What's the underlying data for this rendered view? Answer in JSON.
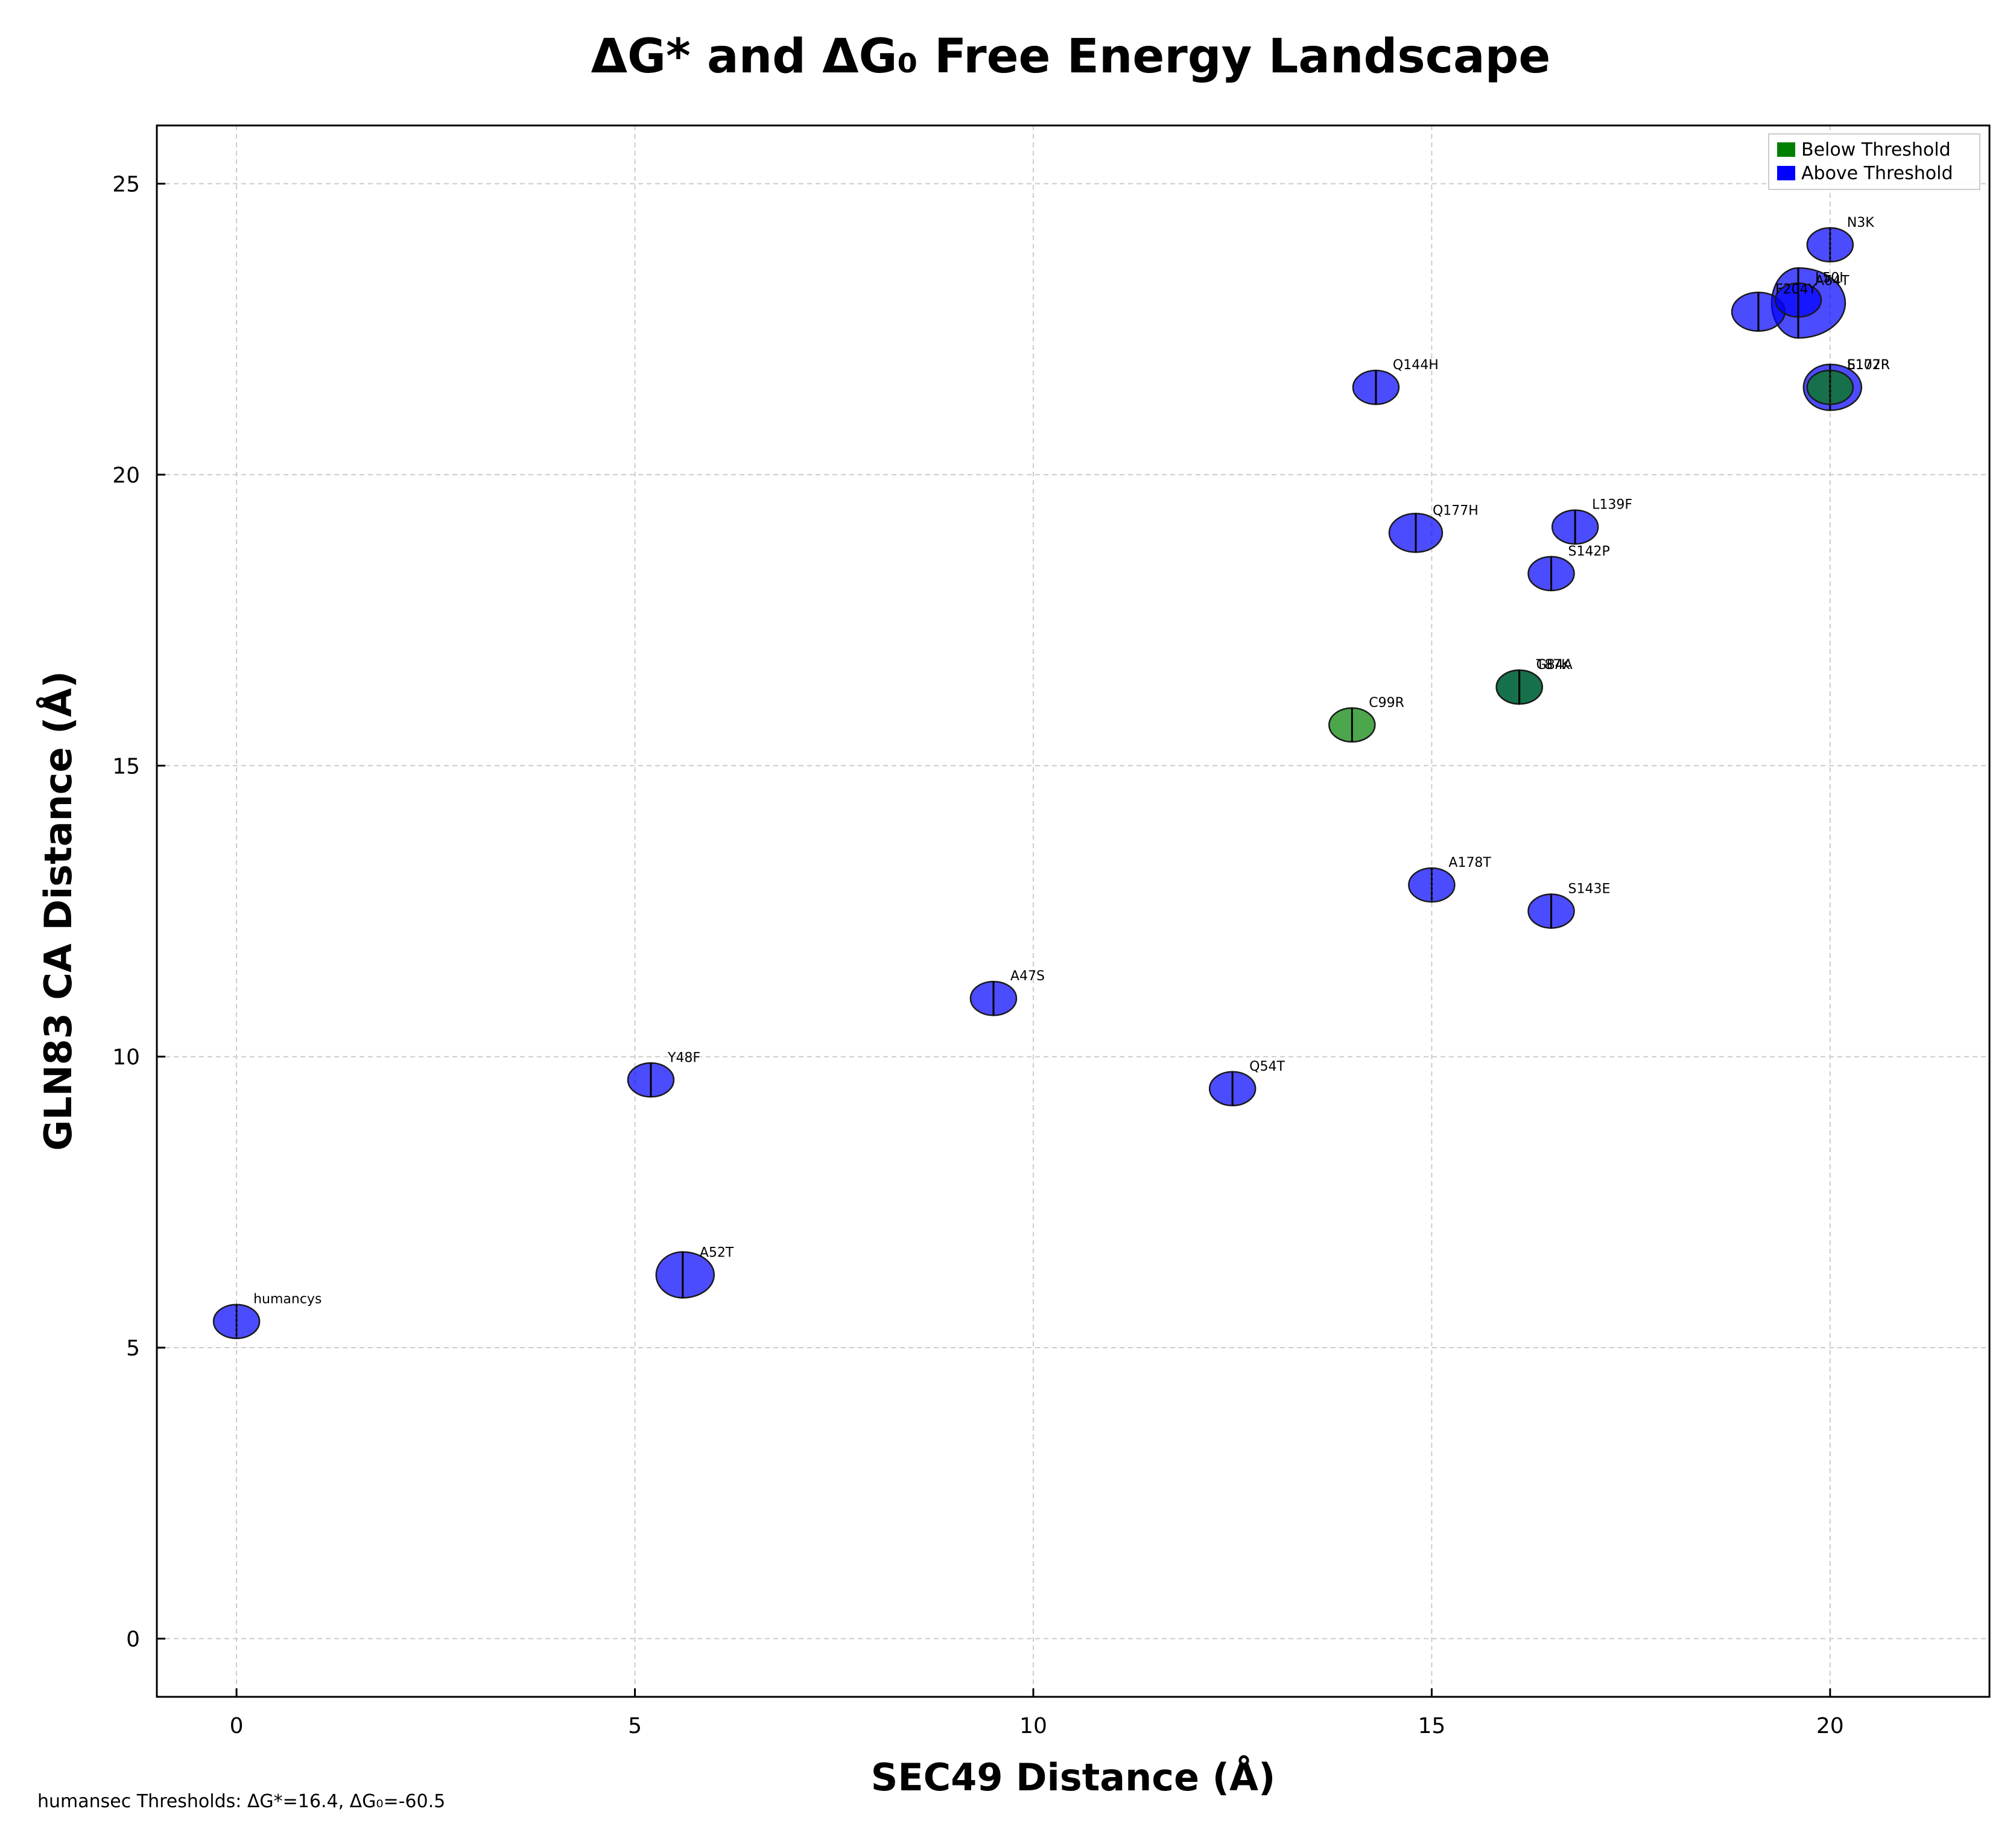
{
  "chart_data": {
    "type": "scatter",
    "title": "ΔG* and ΔG₀ Free Energy Landscape",
    "xlabel": "SEC49 Distance (Å)",
    "ylabel": "GLN83 CA Distance (Å)",
    "xlim": [
      -1,
      22
    ],
    "ylim": [
      -1,
      26
    ],
    "xticks": [
      0,
      5,
      10,
      15,
      20
    ],
    "yticks": [
      0,
      5,
      10,
      15,
      20,
      25
    ],
    "grid": true,
    "legend_position": "top-right",
    "legend": [
      {
        "label": "Below Threshold",
        "color": "#008000"
      },
      {
        "label": "Above Threshold",
        "color": "#0000ff"
      }
    ],
    "colors": {
      "below": "#008000",
      "above": "#0000ff",
      "mixed_teal": "#1f6f4f"
    },
    "points": [
      {
        "label": "humancys",
        "x": 0.0,
        "y": 5.45,
        "left": "above",
        "right": "above",
        "shape": "dotted"
      },
      {
        "label": "Y48F",
        "x": 5.2,
        "y": 9.6,
        "left": "above",
        "right": "above",
        "shape": "equal"
      },
      {
        "label": "A52T",
        "x": 5.6,
        "y": 6.25,
        "left": "above",
        "right": "above",
        "shape": "right-large"
      },
      {
        "label": "A47S",
        "x": 9.5,
        "y": 11.0,
        "left": "above",
        "right": "above",
        "shape": "equal"
      },
      {
        "label": "Q54T",
        "x": 12.5,
        "y": 9.45,
        "left": "above",
        "right": "above",
        "shape": "equal"
      },
      {
        "label": "C99R",
        "x": 14.0,
        "y": 15.7,
        "left": "below",
        "right": "below",
        "shape": "equal",
        "alpha": 0.7
      },
      {
        "label": "Q144H",
        "x": 14.3,
        "y": 21.5,
        "left": "above",
        "right": "above",
        "shape": "equal"
      },
      {
        "label": "Q177H",
        "x": 14.8,
        "y": 19.0,
        "left": "above",
        "right": "above",
        "shape": "right-medium"
      },
      {
        "label": "A178T",
        "x": 15.0,
        "y": 12.95,
        "left": "above",
        "right": "above",
        "shape": "dotted"
      },
      {
        "label": "S143E",
        "x": 16.5,
        "y": 12.5,
        "left": "above",
        "right": "above",
        "shape": "equal"
      },
      {
        "label": "S142P",
        "x": 16.5,
        "y": 18.3,
        "left": "above",
        "right": "above",
        "shape": "equal"
      },
      {
        "label": "L139F",
        "x": 16.8,
        "y": 19.1,
        "left": "above",
        "right": "above",
        "shape": "equal"
      },
      {
        "label": "G84A",
        "x": 16.1,
        "y": 16.35,
        "left": "above",
        "right": "above",
        "shape": "equal",
        "overlay": true
      },
      {
        "label": "T87K",
        "x": 16.1,
        "y": 16.35,
        "left": "below",
        "right": "below",
        "shape": "equal",
        "overlay": true
      },
      {
        "label": "N3K",
        "x": 20.0,
        "y": 23.95,
        "left": "above",
        "right": "above",
        "shape": "dotted"
      },
      {
        "label": "F204Y",
        "x": 19.1,
        "y": 22.8,
        "left": "above",
        "right": "above",
        "shape": "right-medium"
      },
      {
        "label": "A64T",
        "x": 19.6,
        "y": 22.95,
        "left": "above",
        "right": "above",
        "shape": "right-xlarge"
      },
      {
        "label": "L50I",
        "x": 19.6,
        "y": 23.0,
        "left": "above",
        "right": "above",
        "shape": "equal"
      },
      {
        "label": "S107R",
        "x": 20.0,
        "y": 21.5,
        "left": "above",
        "right": "above",
        "shape": "right-large"
      },
      {
        "label": "E172R",
        "x": 20.0,
        "y": 21.5,
        "left": "below",
        "right": "below",
        "shape": "dotted"
      }
    ]
  },
  "footer_text": "humansec Thresholds: ΔG*=16.4, ΔG₀=-60.5"
}
